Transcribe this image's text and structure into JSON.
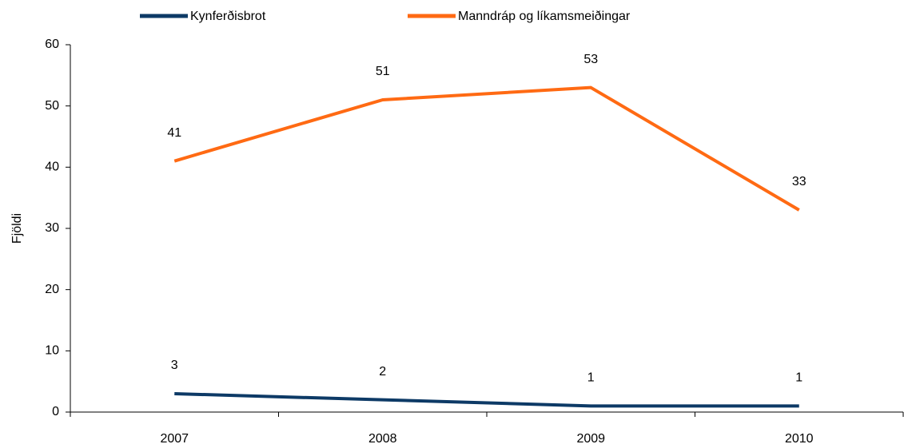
{
  "chart_data": {
    "type": "line",
    "y_label": "Fjöldi",
    "categories": [
      "2007",
      "2008",
      "2009",
      "2010"
    ],
    "series": [
      {
        "name": "Kynferðisbrot",
        "color": "#0d3a66",
        "values": [
          3,
          2,
          1,
          1
        ]
      },
      {
        "name": "Manndráp og líkamsmeiðingar",
        "color": "#ff6a13",
        "values": [
          41,
          51,
          53,
          33
        ]
      }
    ],
    "ylim": [
      0,
      60
    ],
    "yticks": [
      0,
      10,
      20,
      30,
      40,
      50,
      60
    ],
    "grid": false,
    "legend": "top"
  }
}
